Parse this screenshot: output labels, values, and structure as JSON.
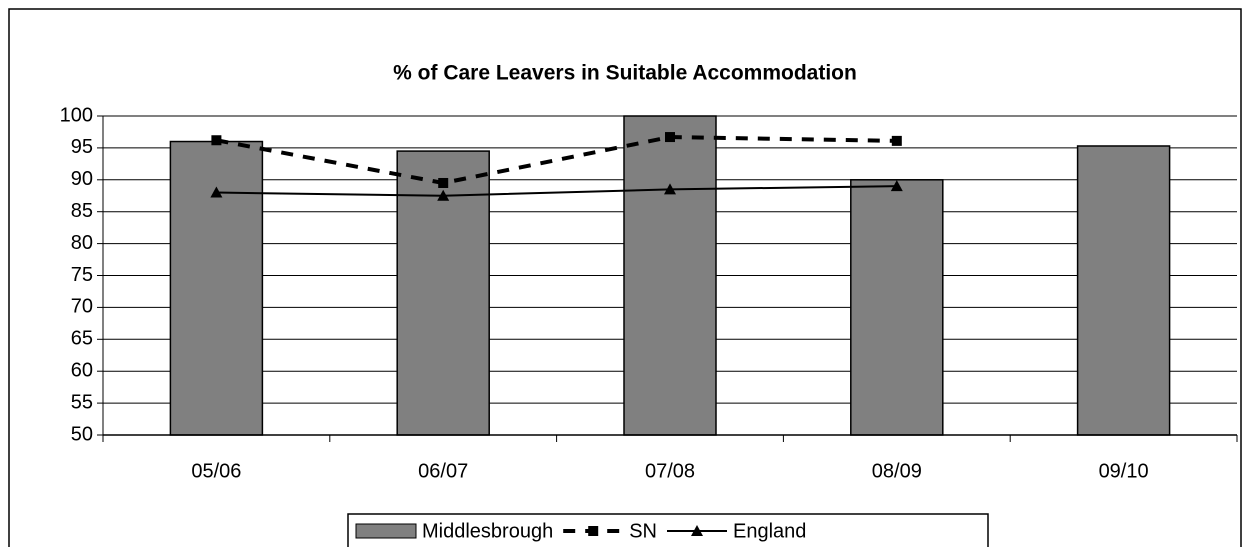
{
  "chart_data": {
    "type": "bar_line",
    "title": "% of Care Leavers in Suitable Accommodation",
    "categories": [
      "05/06",
      "06/07",
      "07/08",
      "08/09",
      "09/10"
    ],
    "series": [
      {
        "name": "Middlesbrough",
        "type": "bar",
        "color": "#808080",
        "values": [
          96,
          94.5,
          100,
          90,
          95.3
        ]
      },
      {
        "name": "SN",
        "type": "line",
        "color": "#000000",
        "line_style": "dashed",
        "marker": "square",
        "values": [
          96.2,
          89.5,
          96.7,
          96.1,
          null
        ]
      },
      {
        "name": "England",
        "type": "line",
        "color": "#000000",
        "line_style": "solid",
        "marker": "triangle",
        "values": [
          88,
          87.5,
          88.5,
          89,
          null
        ]
      }
    ],
    "ylim": [
      50,
      100
    ],
    "yticks": [
      50,
      55,
      60,
      65,
      70,
      75,
      80,
      85,
      90,
      95,
      100
    ],
    "grid": true,
    "legend": "bottom"
  }
}
